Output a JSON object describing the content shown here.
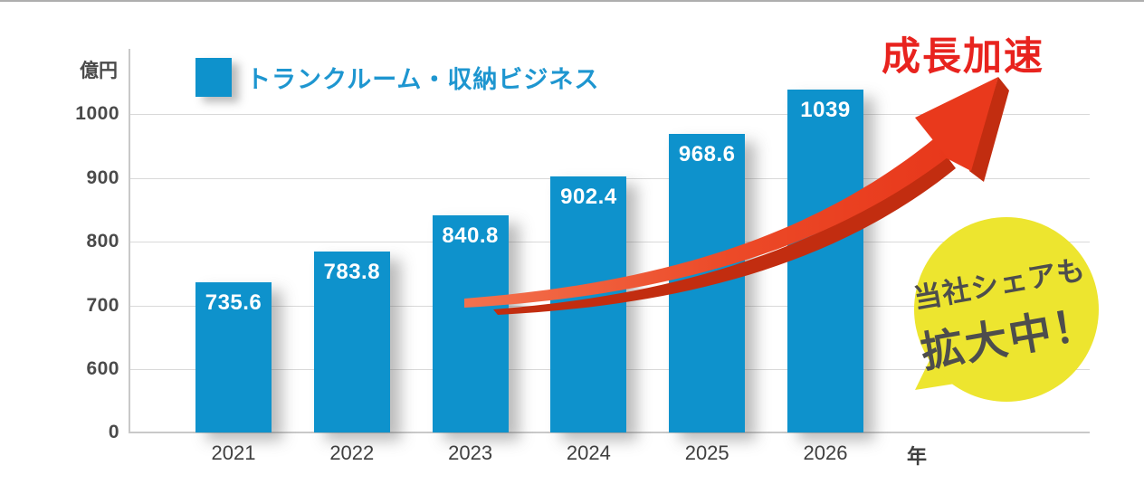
{
  "chart_data": {
    "type": "bar",
    "title": "",
    "categories": [
      "2021",
      "2022",
      "2023",
      "2024",
      "2025",
      "2026"
    ],
    "values": [
      735.6,
      783.8,
      840.8,
      902.4,
      968.6,
      1039
    ],
    "value_labels": [
      "735.6",
      "783.8",
      "840.8",
      "902.4",
      "968.6",
      "1039"
    ],
    "series_name": "トランクルーム・収納ビジネス",
    "ylabel": "億円",
    "xlabel": "年",
    "y_ticks": [
      0,
      600,
      700,
      800,
      900,
      1000
    ],
    "ylim": [
      0,
      1050
    ],
    "axis_note": "broken y-axis: 0 then 600-1000",
    "grid": true,
    "legend_position": "top-left",
    "bar_color": "#0E92CC"
  },
  "legend": {
    "label": "トランクルーム・収納ビジネス"
  },
  "axes": {
    "y_unit": "億円",
    "x_unit": "年"
  },
  "annotations": {
    "growth_title": "成長加速",
    "bubble_line1": "当社シェアも",
    "bubble_line2": "拡大中！"
  },
  "colors": {
    "bar_blue": "#0E92CC",
    "legend_text_blue": "#1E96D0",
    "arrow_red": "#E9391C",
    "arrow_red_dark": "#C22D10",
    "title_red": "#E8231E",
    "bubble_yellow": "#EDE52F",
    "bubble_text_gray": "#4D4D4D",
    "axis_text": "#4A4A4A",
    "gridline": "#D9D9D9"
  }
}
